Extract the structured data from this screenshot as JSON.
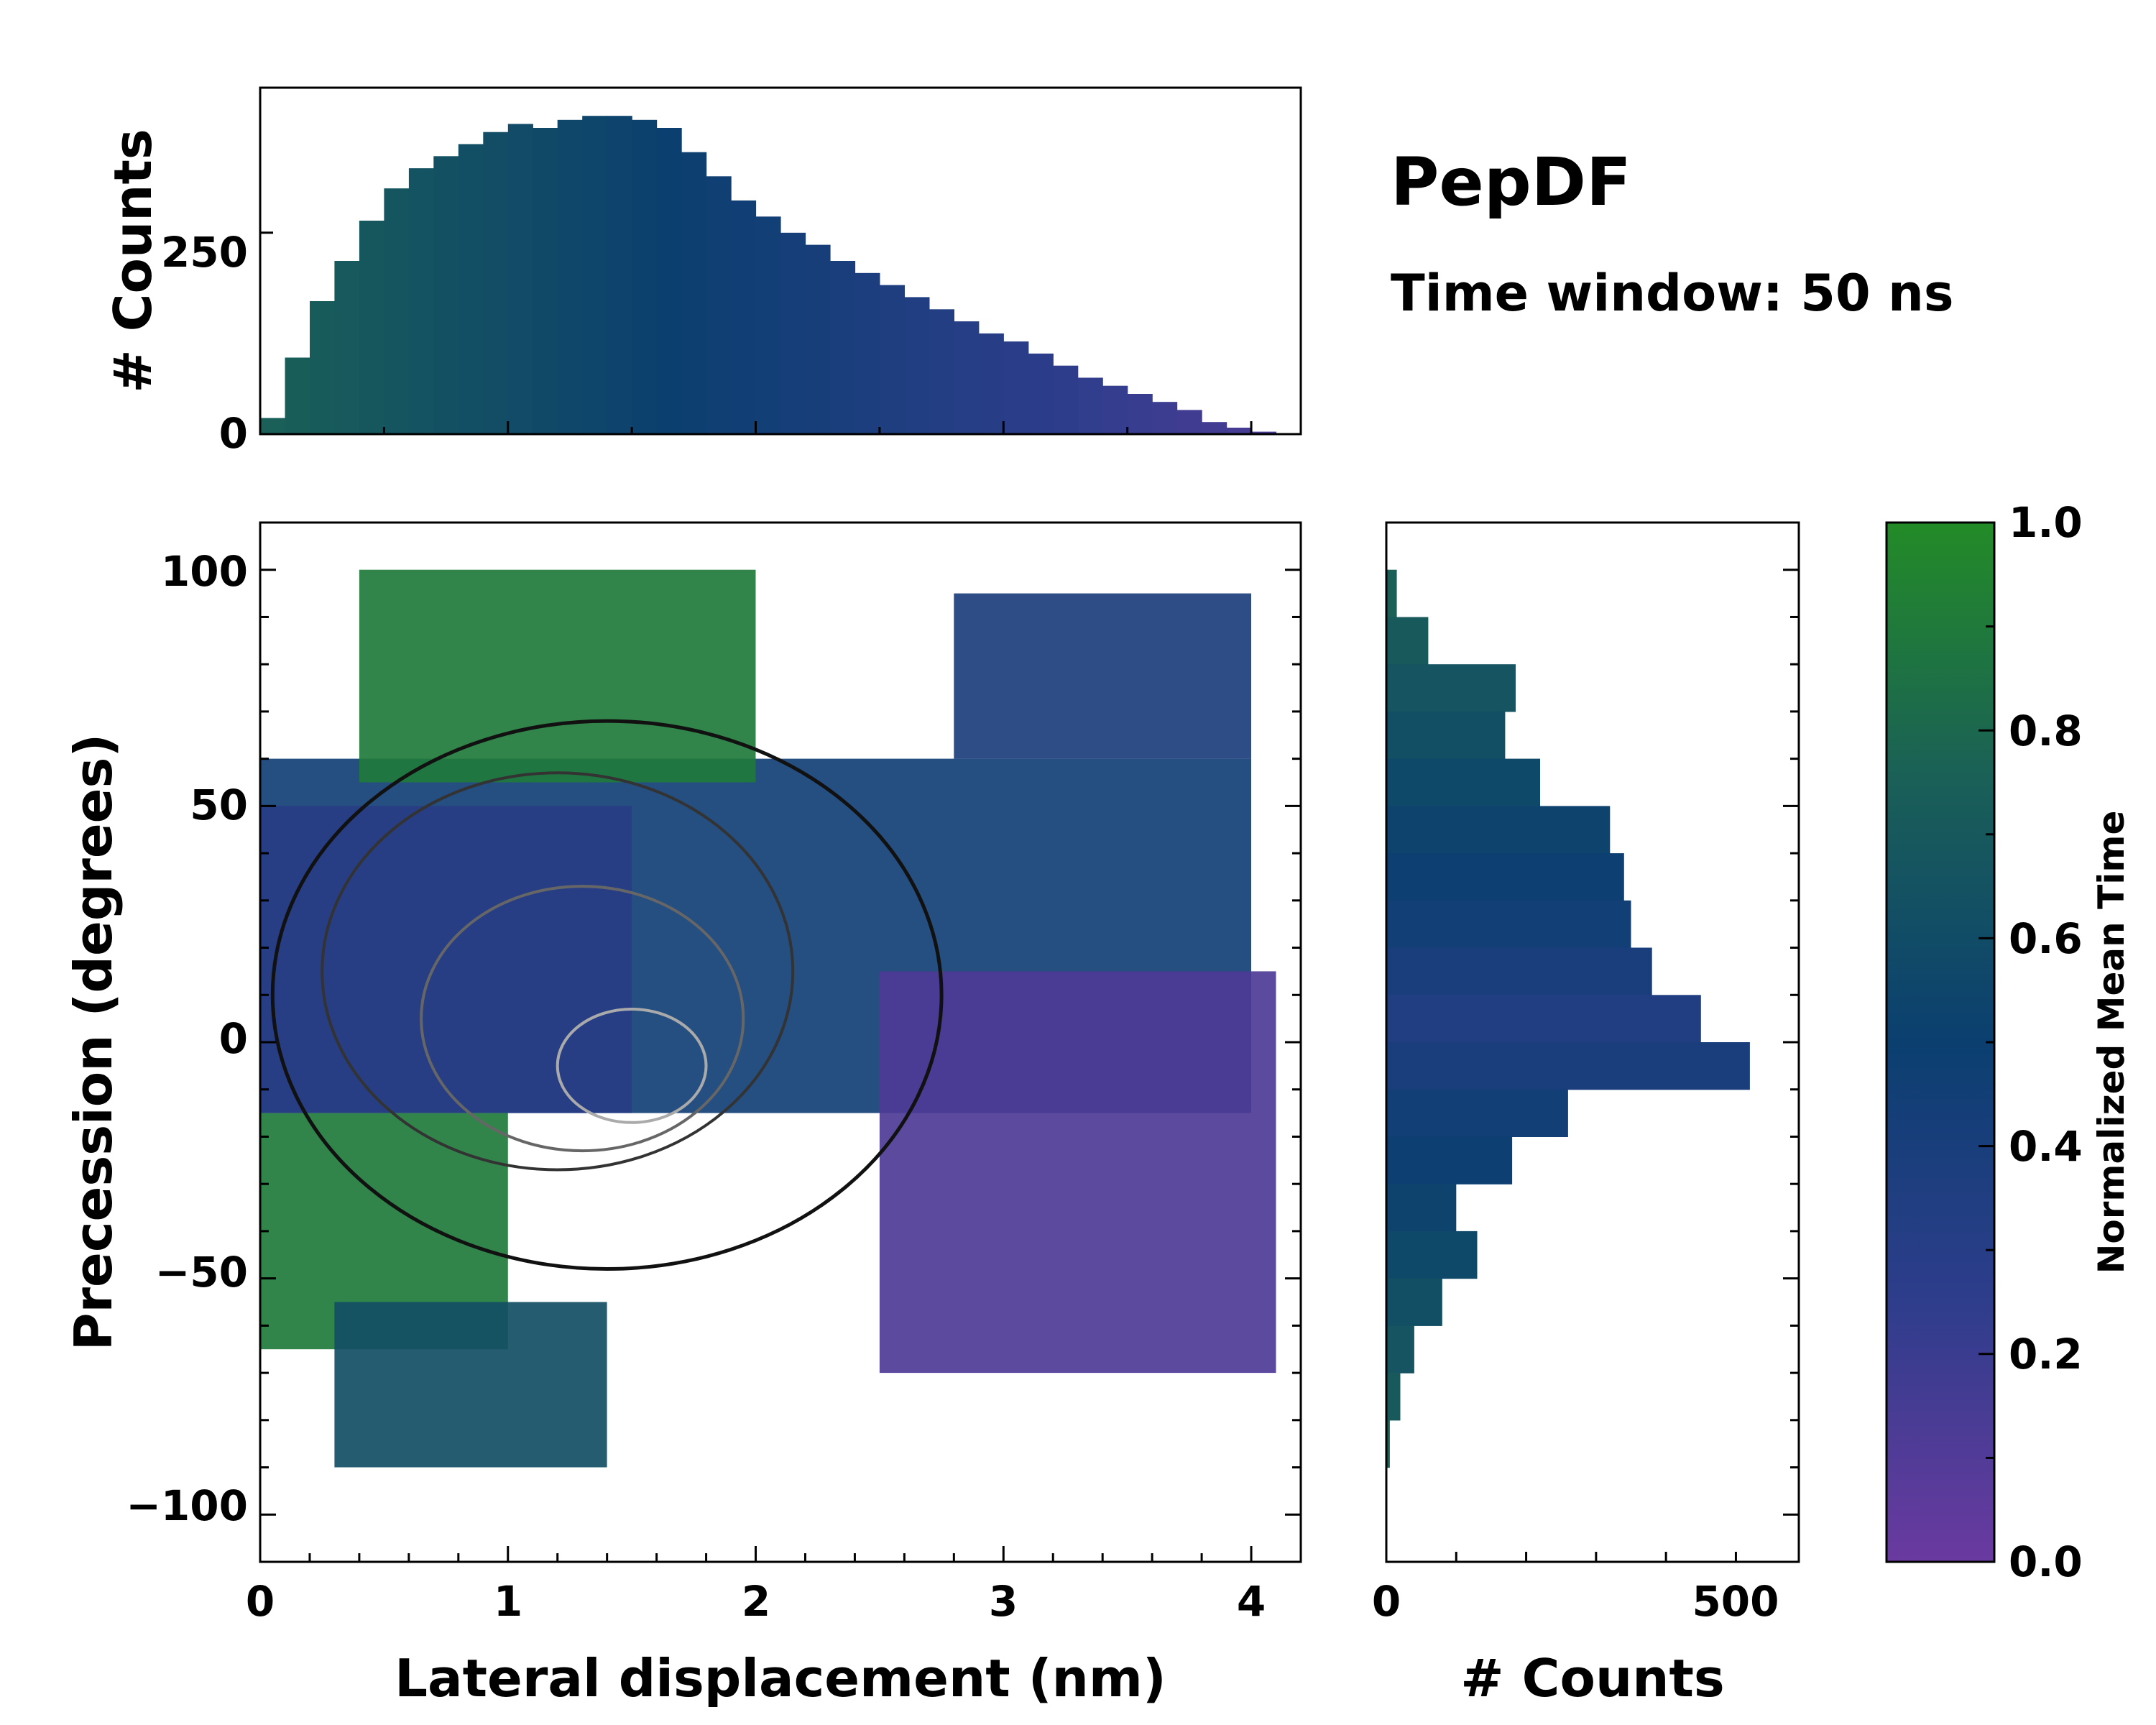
{
  "annotation": {
    "title": "PepDF",
    "subtitle": "Time window: 50 ns"
  },
  "colors": {
    "low": "#6a3aa0",
    "mid_low": "#2e3d8c",
    "mid": "#0b3f70",
    "mid_high": "#1a5f58",
    "high": "#238b27"
  },
  "chart_data": [
    {
      "name": "top-histogram",
      "type": "bar",
      "xlabel": "",
      "ylabel": "# Counts",
      "xlim": [
        0,
        4.2
      ],
      "ylim": [
        0,
        430
      ],
      "y_ticks": [
        "0",
        "250"
      ],
      "bins": {
        "x": [
          0.0,
          0.1,
          0.2,
          0.3,
          0.4,
          0.5,
          0.6,
          0.7,
          0.8,
          0.9,
          1.0,
          1.1,
          1.2,
          1.3,
          1.4,
          1.5,
          1.6,
          1.7,
          1.8,
          1.9,
          2.0,
          2.1,
          2.2,
          2.3,
          2.4,
          2.5,
          2.6,
          2.7,
          2.8,
          2.9,
          3.0,
          3.1,
          3.2,
          3.3,
          3.4,
          3.5,
          3.6,
          3.7,
          3.8,
          3.9,
          4.0,
          4.1
        ],
        "counts": [
          20,
          95,
          165,
          215,
          265,
          305,
          330,
          345,
          360,
          375,
          385,
          380,
          390,
          395,
          395,
          390,
          380,
          350,
          320,
          290,
          270,
          250,
          235,
          215,
          200,
          185,
          170,
          155,
          140,
          125,
          115,
          100,
          85,
          70,
          60,
          50,
          40,
          30,
          15,
          8,
          3,
          0
        ]
      }
    },
    {
      "name": "joint-heatmap",
      "type": "heatmap",
      "xlabel": "Lateral displacement (nm)",
      "ylabel": "Precession (degrees)",
      "xlim": [
        0,
        4.2
      ],
      "ylim": [
        -110,
        110
      ],
      "x_ticks": [
        "0",
        "1",
        "2",
        "3",
        "4"
      ],
      "y_ticks": [
        "100",
        "50",
        "0",
        "−50",
        "−100"
      ],
      "regions": [
        {
          "x0": 0.0,
          "x1": 4.0,
          "y0": -15,
          "y1": 60,
          "value": 0.45
        },
        {
          "x0": 0.0,
          "x1": 1.5,
          "y0": -15,
          "y1": 50,
          "value": 0.3
        },
        {
          "x0": 0.0,
          "x1": 1.0,
          "y0": -65,
          "y1": -15,
          "value": 0.9
        },
        {
          "x0": 0.4,
          "x1": 2.0,
          "y0": 55,
          "y1": 100,
          "value": 0.9
        },
        {
          "x0": 2.5,
          "x1": 4.1,
          "y0": -70,
          "y1": 15,
          "value": 0.12
        },
        {
          "x0": 0.3,
          "x1": 1.4,
          "y0": -90,
          "y1": -55,
          "value": 0.62
        },
        {
          "x0": 2.8,
          "x1": 4.0,
          "y0": 60,
          "y1": 95,
          "value": 0.38
        }
      ]
    },
    {
      "name": "right-histogram",
      "type": "bar",
      "orientation": "horizontal",
      "xlabel": "# Counts",
      "xlim": [
        0,
        590
      ],
      "ylim": [
        -110,
        110
      ],
      "x_ticks": [
        "0",
        "500"
      ],
      "bins": {
        "y": [
          90,
          80,
          70,
          60,
          50,
          40,
          30,
          20,
          10,
          0,
          -10,
          -20,
          -30,
          -40,
          -50,
          -60,
          -70,
          -80,
          -90
        ],
        "counts": [
          15,
          60,
          185,
          170,
          220,
          320,
          340,
          350,
          380,
          450,
          520,
          260,
          180,
          100,
          130,
          80,
          40,
          20,
          5
        ]
      }
    },
    {
      "name": "colorbar",
      "type": "colorbar",
      "label": "Normalized Mean Time",
      "range": [
        0.0,
        1.0
      ],
      "ticks": [
        "0.0",
        "0.2",
        "0.4",
        "0.6",
        "0.8",
        "1.0"
      ]
    }
  ]
}
